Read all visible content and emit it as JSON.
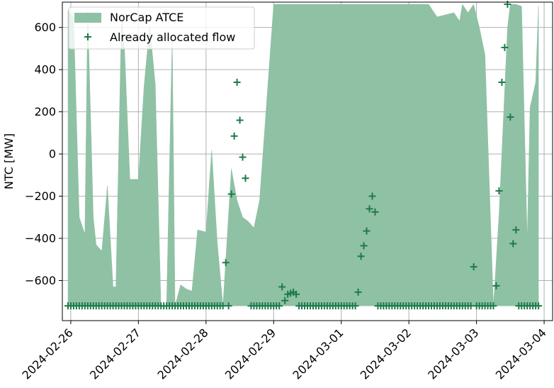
{
  "chart_data": {
    "type": "area",
    "title": "",
    "xlabel": "",
    "ylabel": "NTC [MW]",
    "ylim": [
      -790,
      720
    ],
    "xlim": [
      "2024-02-25 21:00",
      "2024-03-04 03:00"
    ],
    "grid": true,
    "legend_position": "top-left",
    "colors": {
      "fill": "#8fc1a5",
      "marker": "#1e7a4a",
      "grid": "#b0b0b0",
      "axis": "#000000"
    },
    "x_ticks": [
      "2024-02-26",
      "2024-02-27",
      "2024-02-28",
      "2024-02-29",
      "2024-03-01",
      "2024-03-02",
      "2024-03-03",
      "2024-03-04"
    ],
    "y_ticks": [
      600,
      400,
      200,
      0,
      -200,
      -400,
      -600
    ],
    "y_tick_labels": [
      "600",
      "400",
      "200",
      "0",
      "−200",
      "−400",
      "−600"
    ],
    "series": [
      {
        "name": "NorCap ATCE",
        "kind": "band",
        "x": [
          "2024-02-25 23:00",
          "2024-02-26 01:00",
          "2024-02-26 03:00",
          "2024-02-26 05:00",
          "2024-02-26 06:00",
          "2024-02-26 08:00",
          "2024-02-26 09:00",
          "2024-02-26 11:00",
          "2024-02-26 13:00",
          "2024-02-26 15:00",
          "2024-02-26 16:00",
          "2024-02-26 18:00",
          "2024-02-26 19:00",
          "2024-02-26 21:00",
          "2024-02-27 00:00",
          "2024-02-27 02:00",
          "2024-02-27 04:00",
          "2024-02-27 06:00",
          "2024-02-27 08:00",
          "2024-02-27 10:00",
          "2024-02-27 12:00",
          "2024-02-27 13:00",
          "2024-02-27 15:00",
          "2024-02-27 17:00",
          "2024-02-27 19:00",
          "2024-02-27 21:00",
          "2024-02-28 00:00",
          "2024-02-28 02:00",
          "2024-02-28 04:00",
          "2024-02-28 06:00",
          "2024-02-28 09:00",
          "2024-02-28 11:00",
          "2024-02-28 13:00",
          "2024-02-28 15:00",
          "2024-02-28 17:00",
          "2024-02-28 19:00",
          "2024-02-29 00:00",
          "2024-02-29 04:00",
          "2024-02-29 08:00",
          "2024-02-29 12:00",
          "2024-03-01 00:00",
          "2024-03-01 08:00",
          "2024-03-01 11:00",
          "2024-03-01 13:00",
          "2024-03-01 18:00",
          "2024-03-02 00:00",
          "2024-03-02 07:00",
          "2024-03-02 10:00",
          "2024-03-02 16:00",
          "2024-03-02 18:00",
          "2024-03-02 19:00",
          "2024-03-02 21:00",
          "2024-03-02 23:00",
          "2024-03-03 01:00",
          "2024-03-03 03:00",
          "2024-03-03 06:00",
          "2024-03-03 08:00",
          "2024-03-03 11:00",
          "2024-03-03 12:00",
          "2024-03-03 14:00",
          "2024-03-03 16:00",
          "2024-03-03 18:00",
          "2024-03-03 19:00",
          "2024-03-03 21:00",
          "2024-03-03 22:00"
        ],
        "upper": [
          680,
          650,
          -300,
          -380,
          690,
          -300,
          -430,
          -460,
          -150,
          -630,
          -630,
          660,
          520,
          -120,
          -120,
          320,
          610,
          330,
          -720,
          -720,
          560,
          -720,
          -620,
          -640,
          -650,
          -360,
          -370,
          20,
          -420,
          -720,
          -70,
          -220,
          -300,
          -320,
          -350,
          -220,
          710,
          710,
          710,
          710,
          710,
          710,
          710,
          710,
          710,
          710,
          710,
          650,
          670,
          630,
          710,
          670,
          710,
          600,
          470,
          -720,
          -290,
          600,
          710,
          710,
          700,
          -410,
          220,
          340,
          700
        ],
        "lower": [
          -720,
          -720,
          -720,
          -720,
          -720,
          -720,
          -720,
          -720,
          -720,
          -720,
          -720,
          -720,
          -720,
          -720,
          -720,
          -720,
          -720,
          -720,
          -720,
          -720,
          -720,
          -720,
          -720,
          -720,
          -720,
          -720,
          -720,
          -720,
          -720,
          -720,
          -720,
          -720,
          -720,
          -720,
          -720,
          -720,
          -720,
          -720,
          -720,
          -720,
          -720,
          -720,
          -720,
          -720,
          -720,
          -720,
          -720,
          -720,
          -720,
          -720,
          -720,
          -720,
          -720,
          -720,
          -720,
          -720,
          -720,
          -720,
          -720,
          -720,
          -720,
          -720,
          -720,
          -720,
          -720
        ]
      },
      {
        "name": "Already allocated flow",
        "kind": "markers",
        "marker": "+",
        "points": [
          [
            "2024-02-28 07:00",
            -515
          ],
          [
            "2024-02-28 09:00",
            -190
          ],
          [
            "2024-02-28 10:00",
            85
          ],
          [
            "2024-02-28 11:00",
            340
          ],
          [
            "2024-02-28 12:00",
            160
          ],
          [
            "2024-02-28 13:00",
            -15
          ],
          [
            "2024-02-28 14:00",
            -115
          ],
          [
            "2024-02-29 03:00",
            -630
          ],
          [
            "2024-02-29 04:00",
            -695
          ],
          [
            "2024-02-29 05:00",
            -665
          ],
          [
            "2024-02-29 06:00",
            -660
          ],
          [
            "2024-02-29 07:00",
            -655
          ],
          [
            "2024-02-29 08:00",
            -665
          ],
          [
            "2024-03-01 06:00",
            -655
          ],
          [
            "2024-03-01 07:00",
            -485
          ],
          [
            "2024-03-01 08:00",
            -435
          ],
          [
            "2024-03-01 09:00",
            -365
          ],
          [
            "2024-03-01 10:00",
            -260
          ],
          [
            "2024-03-01 11:00",
            -200
          ],
          [
            "2024-03-01 12:00",
            -275
          ],
          [
            "2024-03-02 23:00",
            -535
          ],
          [
            "2024-03-03 07:00",
            -625
          ],
          [
            "2024-03-03 08:00",
            -175
          ],
          [
            "2024-03-03 09:00",
            340
          ],
          [
            "2024-03-03 10:00",
            505
          ],
          [
            "2024-03-03 11:00",
            710
          ],
          [
            "2024-03-03 12:00",
            175
          ],
          [
            "2024-03-03 13:00",
            -425
          ],
          [
            "2024-03-03 14:00",
            -360
          ]
        ],
        "baseline_value": -720,
        "baseline_ranges": [
          [
            "2024-02-25 23:00",
            "2024-02-28 06:00"
          ],
          [
            "2024-02-28 08:00",
            "2024-02-28 08:00"
          ],
          [
            "2024-02-28 16:00",
            "2024-02-29 02:00"
          ],
          [
            "2024-02-29 09:00",
            "2024-03-01 05:00"
          ],
          [
            "2024-03-01 13:00",
            "2024-03-02 22:00"
          ],
          [
            "2024-03-03 00:00",
            "2024-03-03 06:00"
          ],
          [
            "2024-03-03 15:00",
            "2024-03-03 22:00"
          ]
        ]
      }
    ]
  }
}
